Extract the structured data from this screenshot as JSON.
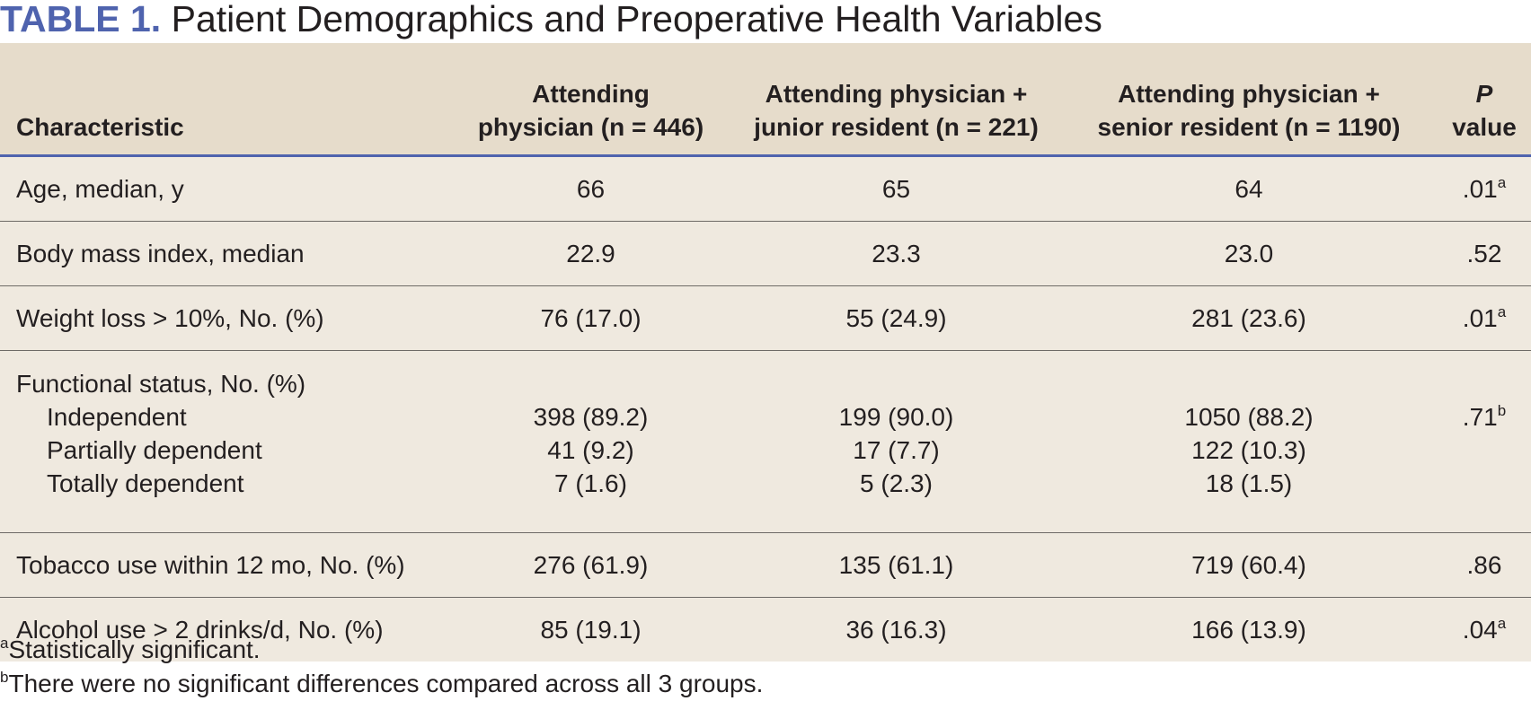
{
  "title": {
    "label": "TABLE 1.",
    "text": "Patient Demographics and Preoperative Health Variables"
  },
  "headers": {
    "characteristic": "Characteristic",
    "col1": [
      "Attending",
      "physician (n = 446)"
    ],
    "col2": [
      "Attending physician +",
      "junior resident (n = 221)"
    ],
    "col3": [
      "Attending physician +",
      "senior resident (n = 1190)"
    ],
    "pvalue_italic": "P",
    "pvalue_word": "value"
  },
  "rows": [
    {
      "label": "Age, median, y",
      "v1": "66",
      "v2": "65",
      "v3": "64",
      "p": ".01",
      "p_sup": "a"
    },
    {
      "label": "Body mass index, median",
      "v1": "22.9",
      "v2": "23.3",
      "v3": "23.0",
      "p": ".52",
      "p_sup": ""
    },
    {
      "label": "Weight loss > 10%, No. (%)",
      "v1": "76 (17.0)",
      "v2": "55 (24.9)",
      "v3": "281 (23.6)",
      "p": ".01",
      "p_sup": "a"
    }
  ],
  "functional_status": {
    "label": "Functional status, No. (%)",
    "sub": [
      {
        "label": "Independent",
        "v1": "398 (89.2)",
        "v2": "199 (90.0)",
        "v3": "1050 (88.2)"
      },
      {
        "label": "Partially dependent",
        "v1": "41 (9.2)",
        "v2": "17 (7.7)",
        "v3": "122 (10.3)"
      },
      {
        "label": "Totally dependent",
        "v1": "7 (1.6)",
        "v2": "5 (2.3)",
        "v3": "18 (1.5)"
      }
    ],
    "p": ".71",
    "p_sup": "b"
  },
  "rows_after": [
    {
      "label": "Tobacco use within 12 mo, No. (%)",
      "v1": "276 (61.9)",
      "v2": "135 (61.1)",
      "v3": "719 (60.4)",
      "p": ".86",
      "p_sup": ""
    },
    {
      "label": "Alcohol use > 2 drinks/d, No. (%)",
      "v1": "85 (19.1)",
      "v2": "36 (16.3)",
      "v3": "166 (13.9)",
      "p": ".04",
      "p_sup": "a"
    }
  ],
  "footnotes": [
    {
      "mark": "a",
      "text": "Statistically significant."
    },
    {
      "mark": "b",
      "text": "There were no significant differences compared across all 3 groups."
    }
  ],
  "colors": {
    "accent": "#4f63ae",
    "header_bg": "#e6dccb",
    "body_bg": "#efe9df"
  }
}
